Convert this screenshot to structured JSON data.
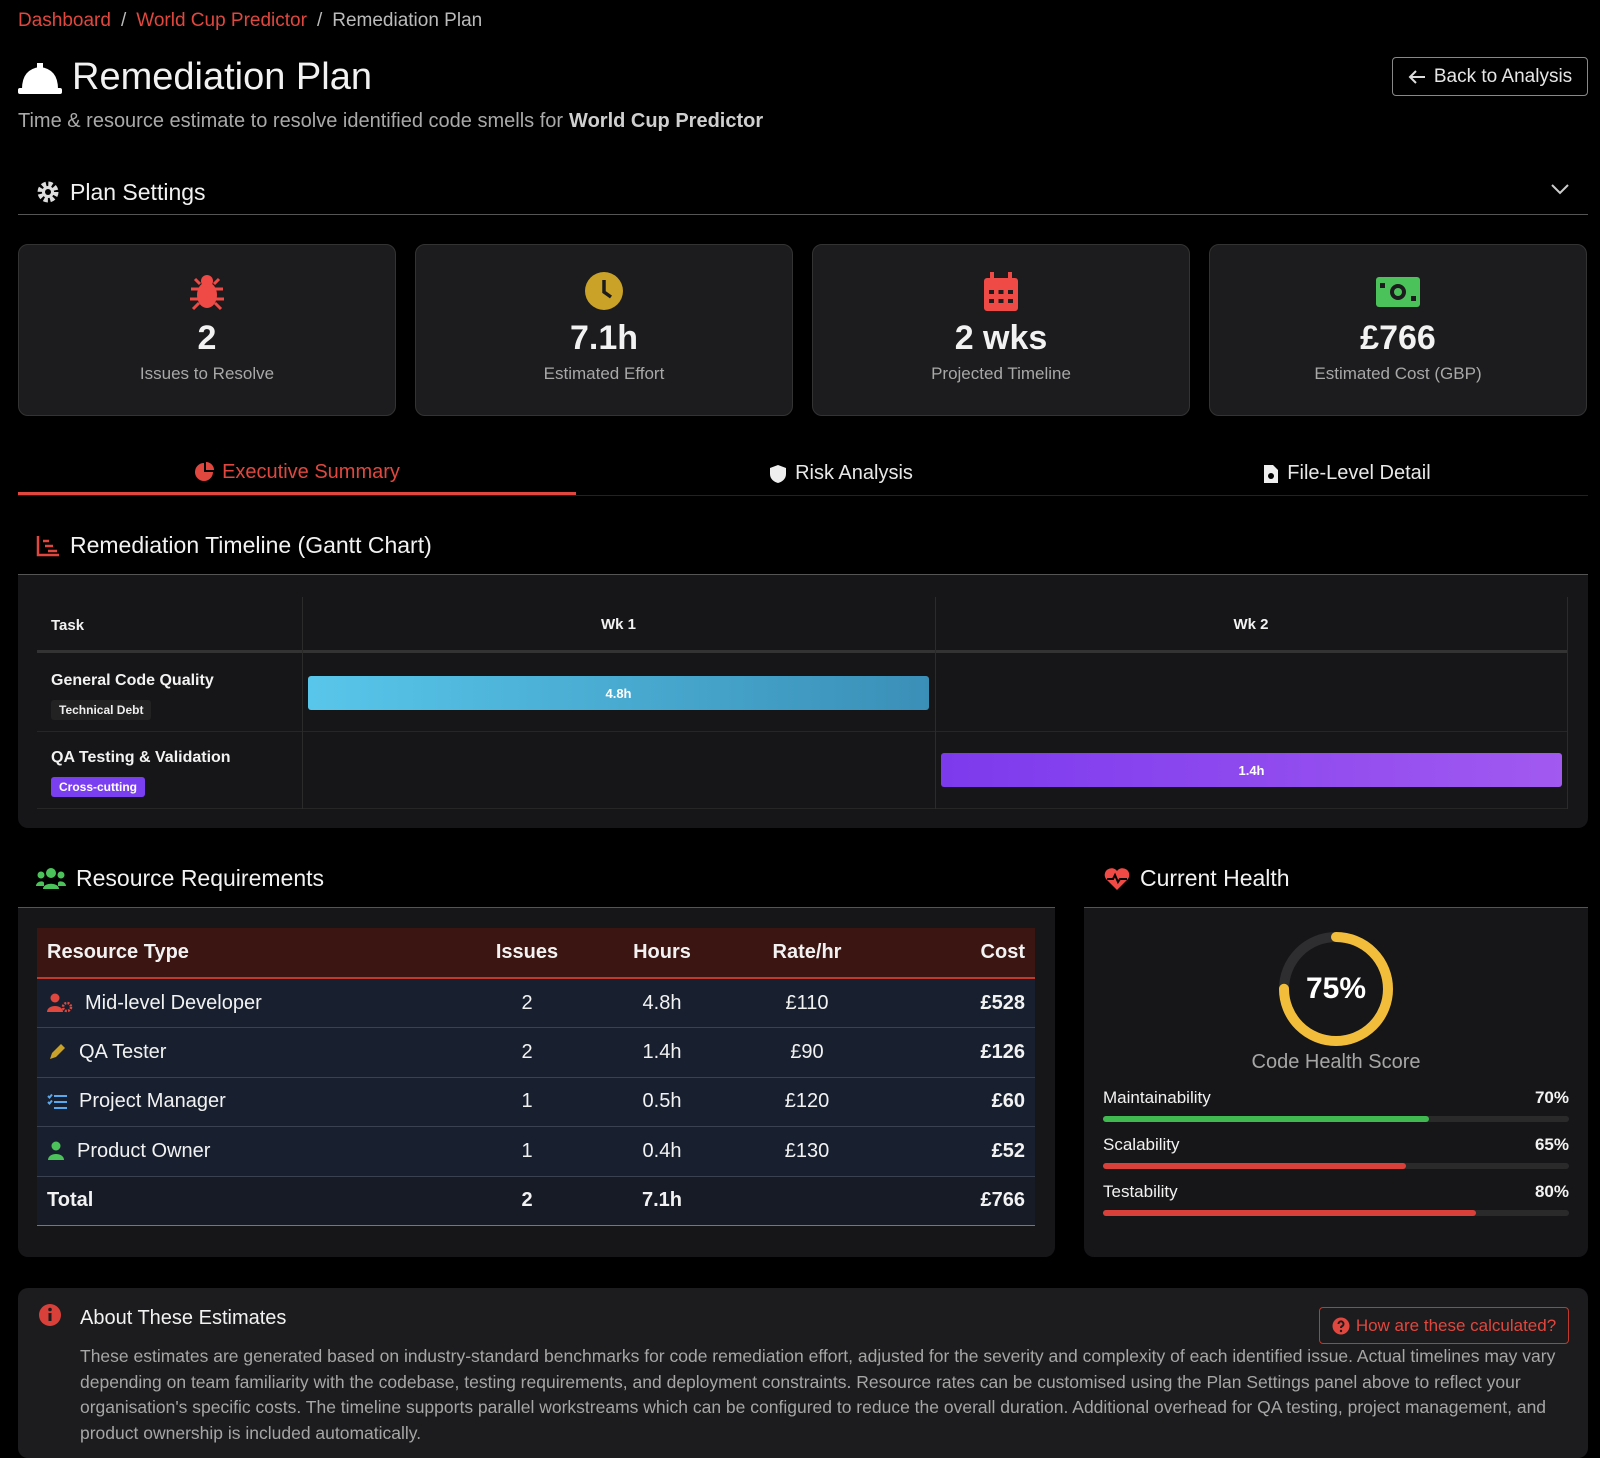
{
  "breadcrumb": [
    "Dashboard",
    "World Cup Predictor",
    "Remediation Plan"
  ],
  "header": {
    "title": "Remediation Plan",
    "subtitle": "Time & resource estimate to resolve identified code smells for",
    "project": "World Cup Predictor",
    "back_button": "Back to Analysis"
  },
  "settings": {
    "title": "Plan Settings"
  },
  "stats": [
    {
      "value": "2",
      "label": "Issues to Resolve"
    },
    {
      "value": "7.1h",
      "label": "Estimated Effort"
    },
    {
      "value": "2 wks",
      "label": "Projected Timeline"
    },
    {
      "value": "£766",
      "label": "Estimated Cost (GBP)"
    }
  ],
  "tabs": [
    "Executive Summary",
    "Risk Analysis",
    "File-Level Detail"
  ],
  "gantt": {
    "title": "Remediation Timeline (Gantt Chart)",
    "columns": [
      "Task",
      "Wk 1",
      "Wk 2"
    ],
    "rows": [
      {
        "task": "General Code Quality",
        "tag": "Technical Debt",
        "cells": [
          "4.8h",
          null
        ]
      },
      {
        "task": "QA Testing & Validation",
        "tag": "Cross-cutting",
        "cells": [
          null,
          "1.4h"
        ]
      }
    ]
  },
  "resources": {
    "title": "Resource Requirements",
    "columns": [
      "Resource Type",
      "Issues",
      "Hours",
      "Rate/hr",
      "Cost"
    ],
    "rows": [
      [
        "Mid-level Developer",
        "2",
        "4.8h",
        "£110",
        "£528"
      ],
      [
        "QA Tester",
        "2",
        "1.4h",
        "£90",
        "£126"
      ],
      [
        "Project Manager",
        "1",
        "0.5h",
        "£120",
        "£60"
      ],
      [
        "Product Owner",
        "1",
        "0.4h",
        "£130",
        "£52"
      ]
    ],
    "total": {
      "label": "Total",
      "issues": "2",
      "hours": "7.1h",
      "cost": "£766"
    }
  },
  "health": {
    "title": "Current Health",
    "score": 75,
    "score_label": "75%",
    "score_caption": "Code Health Score",
    "metrics": [
      {
        "name": "Maintainability",
        "value": 70,
        "value_label": "70%",
        "color": "#3fb950"
      },
      {
        "name": "Scalability",
        "value": 65,
        "value_label": "65%",
        "color": "#d9403a"
      },
      {
        "name": "Testability",
        "value": 80,
        "value_label": "80%",
        "color": "#d9403a"
      }
    ]
  },
  "about": {
    "title": "About These Estimates",
    "button": "How are these calculated?",
    "text": "These estimates are generated based on industry-standard benchmarks for code remediation effort, adjusted for the severity and complexity of each identified issue. Actual timelines may vary depending on team familiarity with the codebase, testing requirements, and deployment constraints. Resource rates can be customised using the Plan Settings panel above to reflect your organisation's specific costs. The timeline supports parallel workstreams which can be configured to reduce the overall duration. Additional overhead for QA testing, project management, and product ownership is included automatically."
  }
}
